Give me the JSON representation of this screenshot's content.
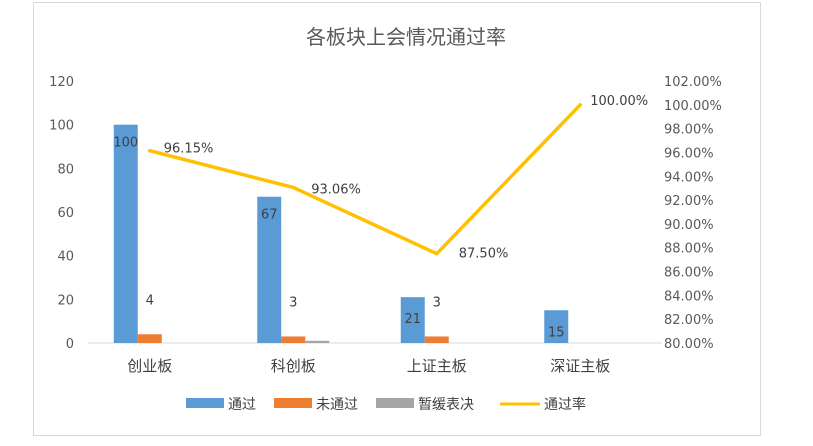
{
  "chart_data": {
    "type": "bar",
    "title": "各板块上会情况通过率",
    "categories": [
      "创业板",
      "科创板",
      "上证主板",
      "深证主板"
    ],
    "series": [
      {
        "name": "通过",
        "type": "bar",
        "axis": "left",
        "color": "#5b9bd5",
        "values": [
          100,
          67,
          21,
          15
        ],
        "labels": [
          "100",
          "67",
          "21",
          "15"
        ]
      },
      {
        "name": "未通过",
        "type": "bar",
        "axis": "left",
        "color": "#ed7d31",
        "values": [
          4,
          3,
          3,
          0
        ],
        "labels": [
          "4",
          "3",
          "3",
          ""
        ]
      },
      {
        "name": "暂缓表决",
        "type": "bar",
        "axis": "left",
        "color": "#a5a5a5",
        "values": [
          0,
          1,
          0,
          0
        ],
        "labels": [
          "",
          "",
          "",
          ""
        ]
      },
      {
        "name": "通过率",
        "type": "line",
        "axis": "right",
        "color": "#ffc000",
        "values": [
          96.15,
          93.06,
          87.5,
          100.0
        ],
        "labels": [
          "96.15%",
          "93.06%",
          "87.50%",
          "100.00%"
        ]
      }
    ],
    "y_left": {
      "range": [
        0,
        120
      ],
      "ticks": [
        "0",
        "20",
        "40",
        "60",
        "80",
        "100",
        "120"
      ]
    },
    "y_right": {
      "range": [
        80,
        102
      ],
      "ticks": [
        "80.00%",
        "82.00%",
        "84.00%",
        "86.00%",
        "88.00%",
        "90.00%",
        "92.00%",
        "94.00%",
        "96.00%",
        "98.00%",
        "100.00%",
        "102.00%"
      ]
    },
    "grid": false,
    "legend_position": "bottom"
  }
}
